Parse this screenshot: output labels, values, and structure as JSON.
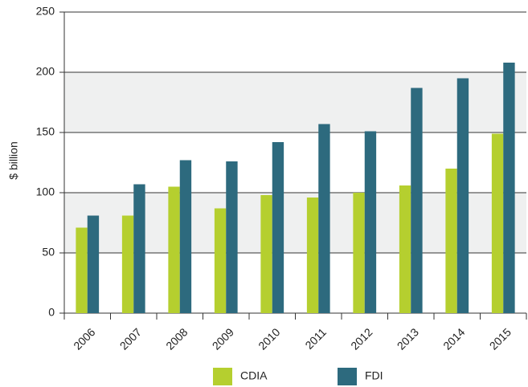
{
  "chart_data": {
    "type": "bar",
    "y_label": "$ billion",
    "categories": [
      "2006",
      "2007",
      "2008",
      "2009",
      "2010",
      "2011",
      "2012",
      "2013",
      "2014",
      "2015"
    ],
    "series": [
      {
        "name": "CDIA",
        "color": "#b5cf2f",
        "values": [
          71,
          81,
          105,
          87,
          98,
          96,
          100,
          106,
          120,
          149
        ]
      },
      {
        "name": "FDI",
        "color": "#2d6a7e",
        "values": [
          81,
          107,
          127,
          126,
          142,
          157,
          151,
          187,
          195,
          208
        ]
      }
    ],
    "ylim": [
      0,
      250
    ],
    "yticks": [
      0,
      50,
      100,
      150,
      200,
      250
    ],
    "grid": true
  }
}
